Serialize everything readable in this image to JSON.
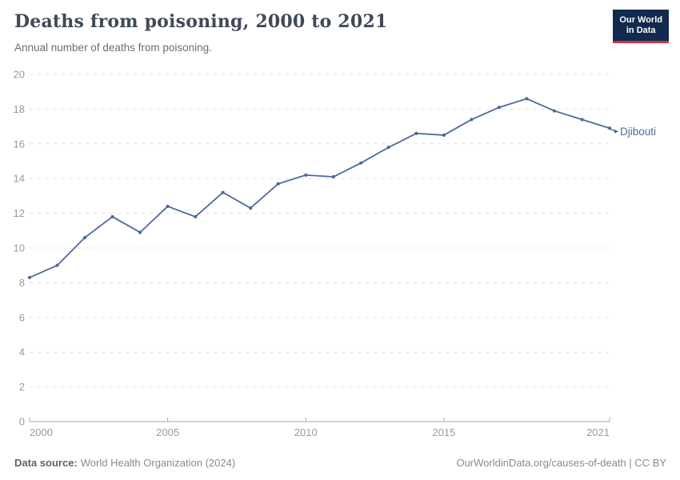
{
  "header": {
    "title": "Deaths from poisoning, 2000 to 2021",
    "subtitle": "Annual number of deaths from poisoning.",
    "logo": {
      "line1": "Our World",
      "line2": "in Data"
    }
  },
  "footer": {
    "source_label": "Data source:",
    "source_text": "World Health Organization (2024)",
    "link_text": "OurWorldinData.org/causes-of-death | CC BY"
  },
  "colors": {
    "series_blue": "#4c6a9c",
    "gridline": "#dedede",
    "axis": "#a8a8a8",
    "tick_label": "#9b9b9b",
    "logo_bg": "#122a4e",
    "logo_red": "#d0353c"
  },
  "chart_data": {
    "type": "line",
    "title": "Deaths from poisoning, 2000 to 2021",
    "subtitle": "Annual number of deaths from poisoning.",
    "xlabel": "",
    "ylabel": "",
    "xlim": [
      2000,
      2021
    ],
    "ylim": [
      0,
      20
    ],
    "x_tick_labels": [
      2000,
      2005,
      2010,
      2015,
      2021
    ],
    "y_ticks": [
      0,
      2,
      4,
      6,
      8,
      10,
      12,
      14,
      16,
      18,
      20
    ],
    "grid": "horizontal-dashed",
    "legend": "inline-end-label",
    "series": [
      {
        "name": "Djibouti",
        "color": "#4c6a9c",
        "x": [
          2000,
          2001,
          2002,
          2003,
          2004,
          2005,
          2006,
          2007,
          2008,
          2009,
          2010,
          2011,
          2012,
          2013,
          2014,
          2015,
          2016,
          2017,
          2018,
          2019,
          2020,
          2021
        ],
        "values": [
          8.3,
          9.0,
          10.6,
          11.8,
          10.9,
          12.4,
          11.8,
          13.2,
          12.3,
          13.7,
          14.2,
          14.1,
          14.9,
          15.8,
          16.6,
          16.5,
          17.4,
          18.1,
          18.6,
          17.9,
          17.4,
          16.9
        ]
      }
    ]
  }
}
